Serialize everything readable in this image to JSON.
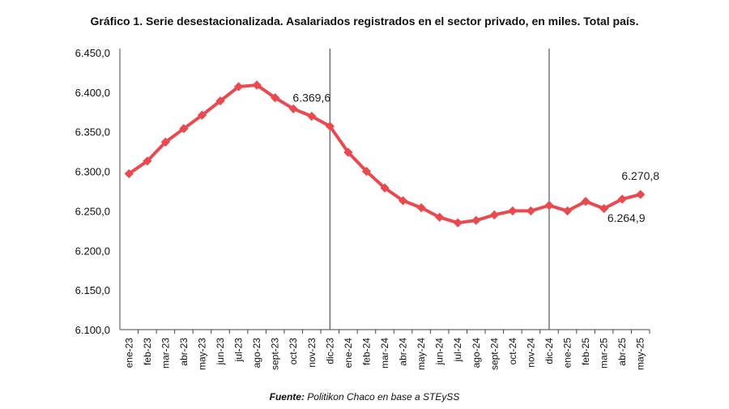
{
  "chart_data": {
    "type": "line",
    "title": "Gráfico 1. Serie desestacionalizada. Asalariados registrados en el sector privado, en miles. Total país.",
    "source_label": "Fuente:",
    "source_text": " Politikon Chaco en base a STEySS",
    "categories": [
      "ene-23",
      "feb-23",
      "mar-23",
      "abr-23",
      "may-23",
      "jun-23",
      "jul-23",
      "ago-23",
      "sept-23",
      "oct-23",
      "nov-23",
      "dic-23",
      "ene-24",
      "feb-24",
      "mar-24",
      "abr-24",
      "may-24",
      "jun-24",
      "jul-24",
      "ago-24",
      "sept-24",
      "oct-24",
      "nov-24",
      "dic-24",
      "ene-25",
      "feb-25",
      "mar-25",
      "abr-25",
      "may-25"
    ],
    "values": [
      6297,
      6313,
      6337,
      6354,
      6371,
      6389,
      6407,
      6409,
      6393,
      6379,
      6369.6,
      6357,
      6324,
      6300,
      6279,
      6263,
      6254,
      6242,
      6235,
      6238,
      6245,
      6250,
      6250,
      6257,
      6250,
      6262,
      6253,
      6264.9,
      6270.8
    ],
    "ylim": [
      6100,
      6450
    ],
    "yticks": [
      "6.100,0",
      "6.150,0",
      "6.200,0",
      "6.250,0",
      "6.300,0",
      "6.350,0",
      "6.400,0",
      "6.450,0"
    ],
    "data_labels": [
      {
        "index": 10,
        "text": "6.369,6"
      },
      {
        "index": 27,
        "text": "6.264,9"
      },
      {
        "index": 28,
        "text": "6.270,8"
      }
    ],
    "vertical_lines_at": [
      "dic-23",
      "dic-24"
    ],
    "grid": false,
    "color": "#e84a4f"
  }
}
